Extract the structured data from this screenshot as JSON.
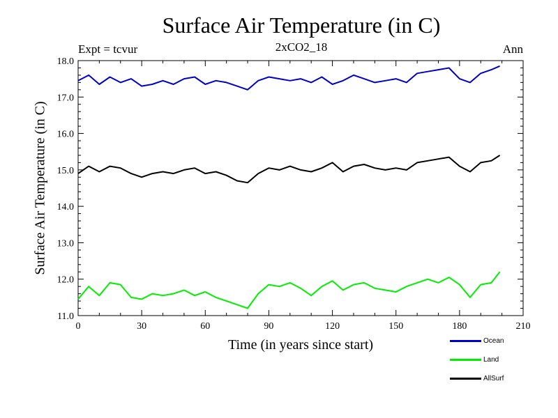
{
  "chart_data": {
    "type": "line",
    "title": "Surface Air Temperature (in C)",
    "subtitle": "2xCO2_18",
    "expt_label": "Expt = tcvur",
    "season_label": "Ann",
    "xlabel": "Time (in years since start)",
    "ylabel": "Surface Air Temperature (in C)",
    "xlim": [
      0,
      210
    ],
    "ylim": [
      11.0,
      18.0
    ],
    "xticks": [
      0,
      30,
      60,
      90,
      120,
      150,
      180,
      210
    ],
    "yticks": [
      "11.0",
      "12.0",
      "13.0",
      "14.0",
      "15.0",
      "16.0",
      "17.0",
      "18.0"
    ],
    "grid": false,
    "legend_position": "bottom-right",
    "series": [
      {
        "name": "Ocean",
        "color": "#0000cc",
        "x": [
          0,
          5,
          10,
          15,
          20,
          25,
          30,
          35,
          40,
          45,
          50,
          55,
          60,
          65,
          70,
          75,
          80,
          85,
          90,
          95,
          100,
          105,
          110,
          115,
          120,
          125,
          130,
          135,
          140,
          145,
          150,
          155,
          160,
          165,
          170,
          175,
          180,
          185,
          190,
          195,
          199
        ],
        "values": [
          17.45,
          17.6,
          17.35,
          17.55,
          17.4,
          17.5,
          17.3,
          17.35,
          17.45,
          17.35,
          17.5,
          17.55,
          17.35,
          17.45,
          17.4,
          17.3,
          17.2,
          17.45,
          17.55,
          17.5,
          17.45,
          17.5,
          17.4,
          17.55,
          17.35,
          17.45,
          17.6,
          17.5,
          17.4,
          17.45,
          17.5,
          17.4,
          17.65,
          17.7,
          17.75,
          17.8,
          17.5,
          17.4,
          17.65,
          17.75,
          17.85
        ]
      },
      {
        "name": "Land",
        "color": "#00ee00",
        "x": [
          0,
          5,
          10,
          15,
          20,
          25,
          30,
          35,
          40,
          45,
          50,
          55,
          60,
          65,
          70,
          75,
          80,
          85,
          90,
          95,
          100,
          105,
          110,
          115,
          120,
          125,
          130,
          135,
          140,
          145,
          150,
          155,
          160,
          165,
          170,
          175,
          180,
          185,
          190,
          195,
          199
        ],
        "values": [
          11.45,
          11.8,
          11.55,
          11.9,
          11.85,
          11.5,
          11.45,
          11.6,
          11.55,
          11.6,
          11.7,
          11.55,
          11.65,
          11.5,
          11.4,
          11.3,
          11.2,
          11.6,
          11.85,
          11.8,
          11.9,
          11.75,
          11.55,
          11.8,
          11.95,
          11.7,
          11.85,
          11.9,
          11.75,
          11.7,
          11.65,
          11.8,
          11.9,
          12.0,
          11.9,
          12.05,
          11.85,
          11.5,
          11.85,
          11.9,
          12.2
        ]
      },
      {
        "name": "AllSurf",
        "color": "#000000",
        "x": [
          0,
          5,
          10,
          15,
          20,
          25,
          30,
          35,
          40,
          45,
          50,
          55,
          60,
          65,
          70,
          75,
          80,
          85,
          90,
          95,
          100,
          105,
          110,
          115,
          120,
          125,
          130,
          135,
          140,
          145,
          150,
          155,
          160,
          165,
          170,
          175,
          180,
          185,
          190,
          195,
          199
        ],
        "values": [
          14.9,
          15.1,
          14.95,
          15.1,
          15.05,
          14.9,
          14.8,
          14.9,
          14.95,
          14.9,
          15.0,
          15.05,
          14.9,
          14.95,
          14.85,
          14.7,
          14.65,
          14.9,
          15.05,
          15.0,
          15.1,
          15.0,
          14.95,
          15.05,
          15.2,
          14.95,
          15.1,
          15.15,
          15.05,
          15.0,
          15.05,
          15.0,
          15.2,
          15.25,
          15.3,
          15.35,
          15.1,
          14.95,
          15.2,
          15.25,
          15.4
        ]
      }
    ]
  }
}
